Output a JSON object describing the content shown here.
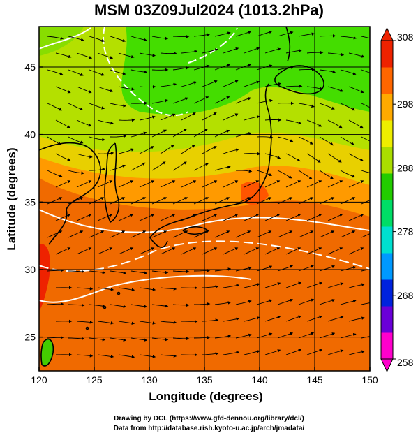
{
  "title": "MSM 03Z09Jul2024 (1013.2hPa)",
  "xlabel": "Longitude (degrees)",
  "ylabel": "Latitude  (degrees)",
  "credits": {
    "line1": "Drawing by DCL (https://www.gfd-dennou.org/library/dcl/)",
    "line2": "Data from http://database.rish.kyoto-u.ac.jp/arch/jmadata/"
  },
  "x_ticks": [
    "120",
    "125",
    "130",
    "135",
    "140",
    "145",
    "150"
  ],
  "y_ticks": [
    "25",
    "30",
    "35",
    "40",
    "45"
  ],
  "colorbar": {
    "min": 258,
    "max": 308,
    "tick_labels": [
      "308",
      "298",
      "288",
      "278",
      "268",
      "258"
    ],
    "tick_values": [
      308,
      298,
      288,
      278,
      268,
      258
    ],
    "colors": [
      "#ff00cc",
      "#6a00d8",
      "#0022dd",
      "#0099ff",
      "#00e0d0",
      "#00dd66",
      "#22cc00",
      "#aadd00",
      "#eeee00",
      "#ffaa00",
      "#ff6600",
      "#ee2200"
    ]
  },
  "map": {
    "lon_range": [
      120,
      150
    ],
    "lat_range": [
      22.5,
      48
    ],
    "gridlines": true,
    "field": "temperature (K) with surface wind streamlines",
    "colors": {
      "warm_ocean": "#f06a00",
      "mid_warm": "#ff9a00",
      "yellow": "#e8d400",
      "green": "#44dd00",
      "land_outline": "#000000",
      "isotherm": "#ffffff"
    }
  }
}
